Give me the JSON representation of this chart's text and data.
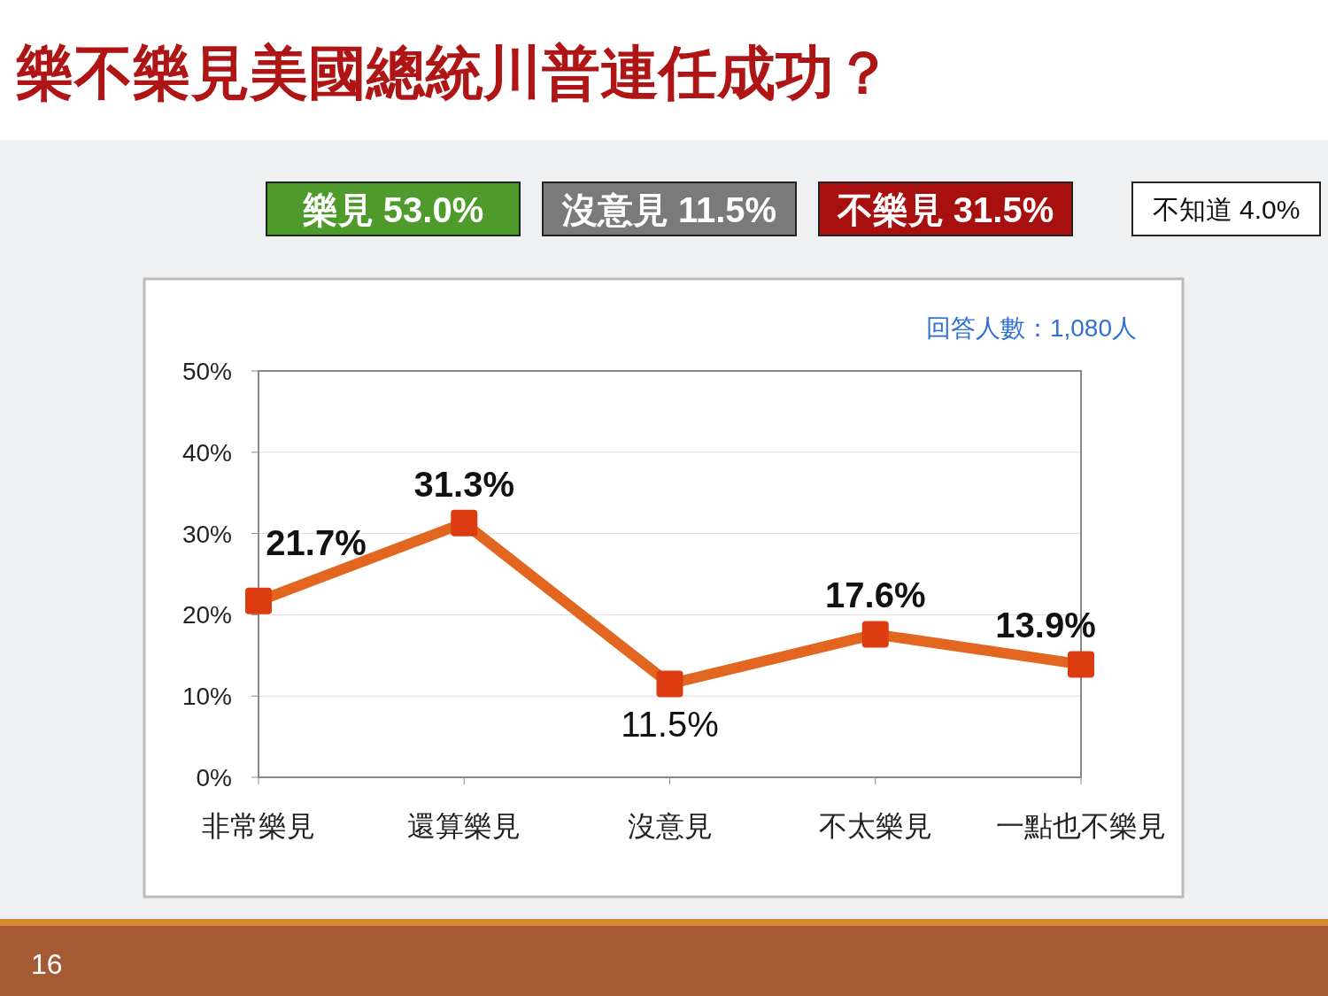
{
  "chart_data": {
    "type": "line",
    "title": "樂不樂見美國總統川普連任成功？",
    "categories": [
      "非常樂見",
      "還算樂見",
      "沒意見",
      "不太樂見",
      "一點也不樂見"
    ],
    "series": [
      {
        "color": "#e2661f",
        "values": [
          21.7,
          31.3,
          11.5,
          17.6,
          13.9
        ],
        "value_labels": [
          "21.7%",
          "31.3%",
          "11.5%",
          "17.6%",
          "13.9%"
        ]
      }
    ],
    "marker": "square",
    "line_style": "solid",
    "ylim": [
      0,
      50
    ],
    "yticks": [
      {
        "value": 0,
        "label": "0%"
      },
      {
        "value": 10,
        "label": "10%"
      },
      {
        "value": 20,
        "label": "20%"
      },
      {
        "value": 30,
        "label": "30%"
      },
      {
        "value": 40,
        "label": "40%"
      },
      {
        "value": 50,
        "label": "50%"
      }
    ],
    "grid": "y",
    "annotations": [
      "回答人數：1,080人",
      "樂見 53.0%",
      "沒意見 11.5%",
      "不樂見 31.5%",
      "不知道 4.0%",
      "16"
    ]
  }
}
